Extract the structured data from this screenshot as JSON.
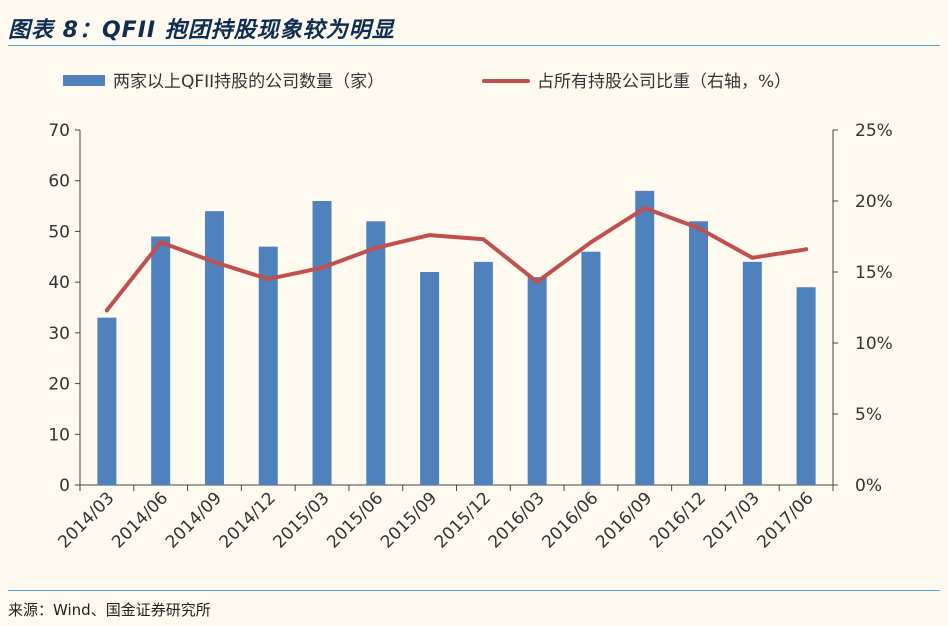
{
  "figure_title": "图表 8：QFII 抱团持股现象较为明显",
  "source": "来源：Wind、国金证券研究所",
  "chart_data": {
    "type": "bar",
    "title": "",
    "categories": [
      "2014/03",
      "2014/06",
      "2014/09",
      "2014/12",
      "2015/03",
      "2015/06",
      "2015/09",
      "2015/12",
      "2016/03",
      "2016/06",
      "2016/09",
      "2016/12",
      "2017/03",
      "2017/06"
    ],
    "series": [
      {
        "name": "两家以上QFII持股的公司数量（家）",
        "type": "bar",
        "axis": "left",
        "color": "#4f81bd",
        "values": [
          33,
          49,
          54,
          47,
          56,
          52,
          42,
          44,
          41,
          46,
          58,
          52,
          44,
          39
        ]
      },
      {
        "name": "占所有持股公司比重（右轴，%）",
        "type": "line",
        "axis": "right",
        "color": "#c0504d",
        "values": [
          12.3,
          17.1,
          15.7,
          14.5,
          15.3,
          16.7,
          17.6,
          17.3,
          14.3,
          17.1,
          19.5,
          18.1,
          16.0,
          16.6
        ]
      }
    ],
    "y_left": {
      "min": 0,
      "max": 70,
      "step": 10,
      "ticks": [
        "0",
        "10",
        "20",
        "30",
        "40",
        "50",
        "60",
        "70"
      ]
    },
    "y_right": {
      "min": 0,
      "max": 25,
      "step": 5,
      "ticks": [
        "0%",
        "5%",
        "10%",
        "15%",
        "20%",
        "25%"
      ]
    },
    "grid": false,
    "legend_position": "top"
  },
  "colors": {
    "background": "#fefaf0",
    "rule": "#4fa3dc",
    "title": "#0f2d52"
  }
}
